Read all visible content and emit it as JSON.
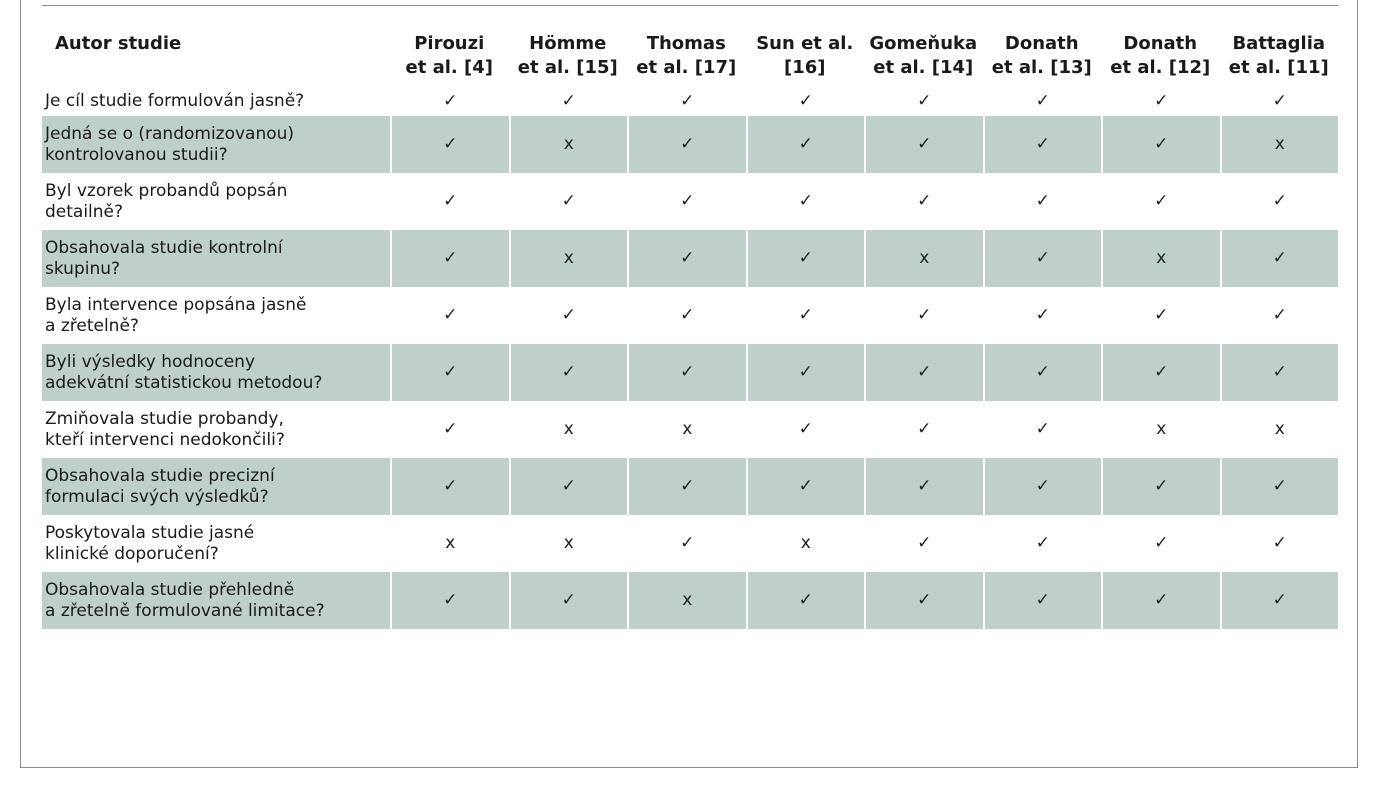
{
  "header": {
    "first": "Autor studie",
    "studies": [
      {
        "line1": "Pirouzi",
        "line2": "et al. [4]"
      },
      {
        "line1": "Hömme",
        "line2": "et al. [15]"
      },
      {
        "line1": "Thomas",
        "line2": "et al. [17]"
      },
      {
        "line1": "Sun et al.",
        "line2": "[16]"
      },
      {
        "line1": "Gomeňuka",
        "line2": "et al. [14]"
      },
      {
        "line1": "Donath",
        "line2": "et al. [13]"
      },
      {
        "line1": "Donath",
        "line2": "et al. [12]"
      },
      {
        "line1": "Battaglia",
        "line2": "et al. [11]"
      }
    ]
  },
  "symbols": {
    "yes": "✓",
    "no": "x"
  },
  "rows": [
    {
      "q1": "Je cíl studie formulován jasně?",
      "q2": "",
      "m": [
        "✓",
        "✓",
        "✓",
        "✓",
        "✓",
        "✓",
        "✓",
        "✓"
      ]
    },
    {
      "q1": "Jedná se o (randomizovanou)",
      "q2": "kontrolovanou studii?",
      "m": [
        "✓",
        "x",
        "✓",
        "✓",
        "✓",
        "✓",
        "✓",
        "x"
      ]
    },
    {
      "q1": "Byl vzorek probandů popsán",
      "q2": "detailně?",
      "m": [
        "✓",
        "✓",
        "✓",
        "✓",
        "✓",
        "✓",
        "✓",
        "✓"
      ]
    },
    {
      "q1": "Obsahovala studie kontrolní",
      "q2": "skupinu?",
      "m": [
        "✓",
        "x",
        "✓",
        "✓",
        "x",
        "✓",
        "x",
        "✓"
      ]
    },
    {
      "q1": "Byla intervence popsána jasně",
      "q2": "a zřetelně?",
      "m": [
        "✓",
        "✓",
        "✓",
        "✓",
        "✓",
        "✓",
        "✓",
        "✓"
      ]
    },
    {
      "q1": "Byli výsledky hodnoceny",
      "q2": "adekvátní statistickou metodou?",
      "m": [
        "✓",
        "✓",
        "✓",
        "✓",
        "✓",
        "✓",
        "✓",
        "✓"
      ]
    },
    {
      "q1": "Zmiňovala studie probandy,",
      "q2": "kteří intervenci nedokončili?",
      "m": [
        "✓",
        "x",
        "x",
        "✓",
        "✓",
        "✓",
        "x",
        "x"
      ]
    },
    {
      "q1": "Obsahovala studie precizní",
      "q2": "formulaci svých výsledků?",
      "m": [
        "✓",
        "✓",
        "✓",
        "✓",
        "✓",
        "✓",
        "✓",
        "✓"
      ]
    },
    {
      "q1": "Poskytovala studie jasné",
      "q2": "klinické doporučení?",
      "m": [
        "x",
        "x",
        "✓",
        "x",
        "✓",
        "✓",
        "✓",
        "✓"
      ]
    },
    {
      "q1": "Obsahovala studie přehledně",
      "q2": "a zřetelně formulované limitace?",
      "m": [
        "✓",
        "✓",
        "x",
        "✓",
        "✓",
        "✓",
        "✓",
        "✓"
      ]
    }
  ],
  "colors": {
    "row_shade": "#bfcfc9",
    "frame": "#8c8c8c"
  }
}
